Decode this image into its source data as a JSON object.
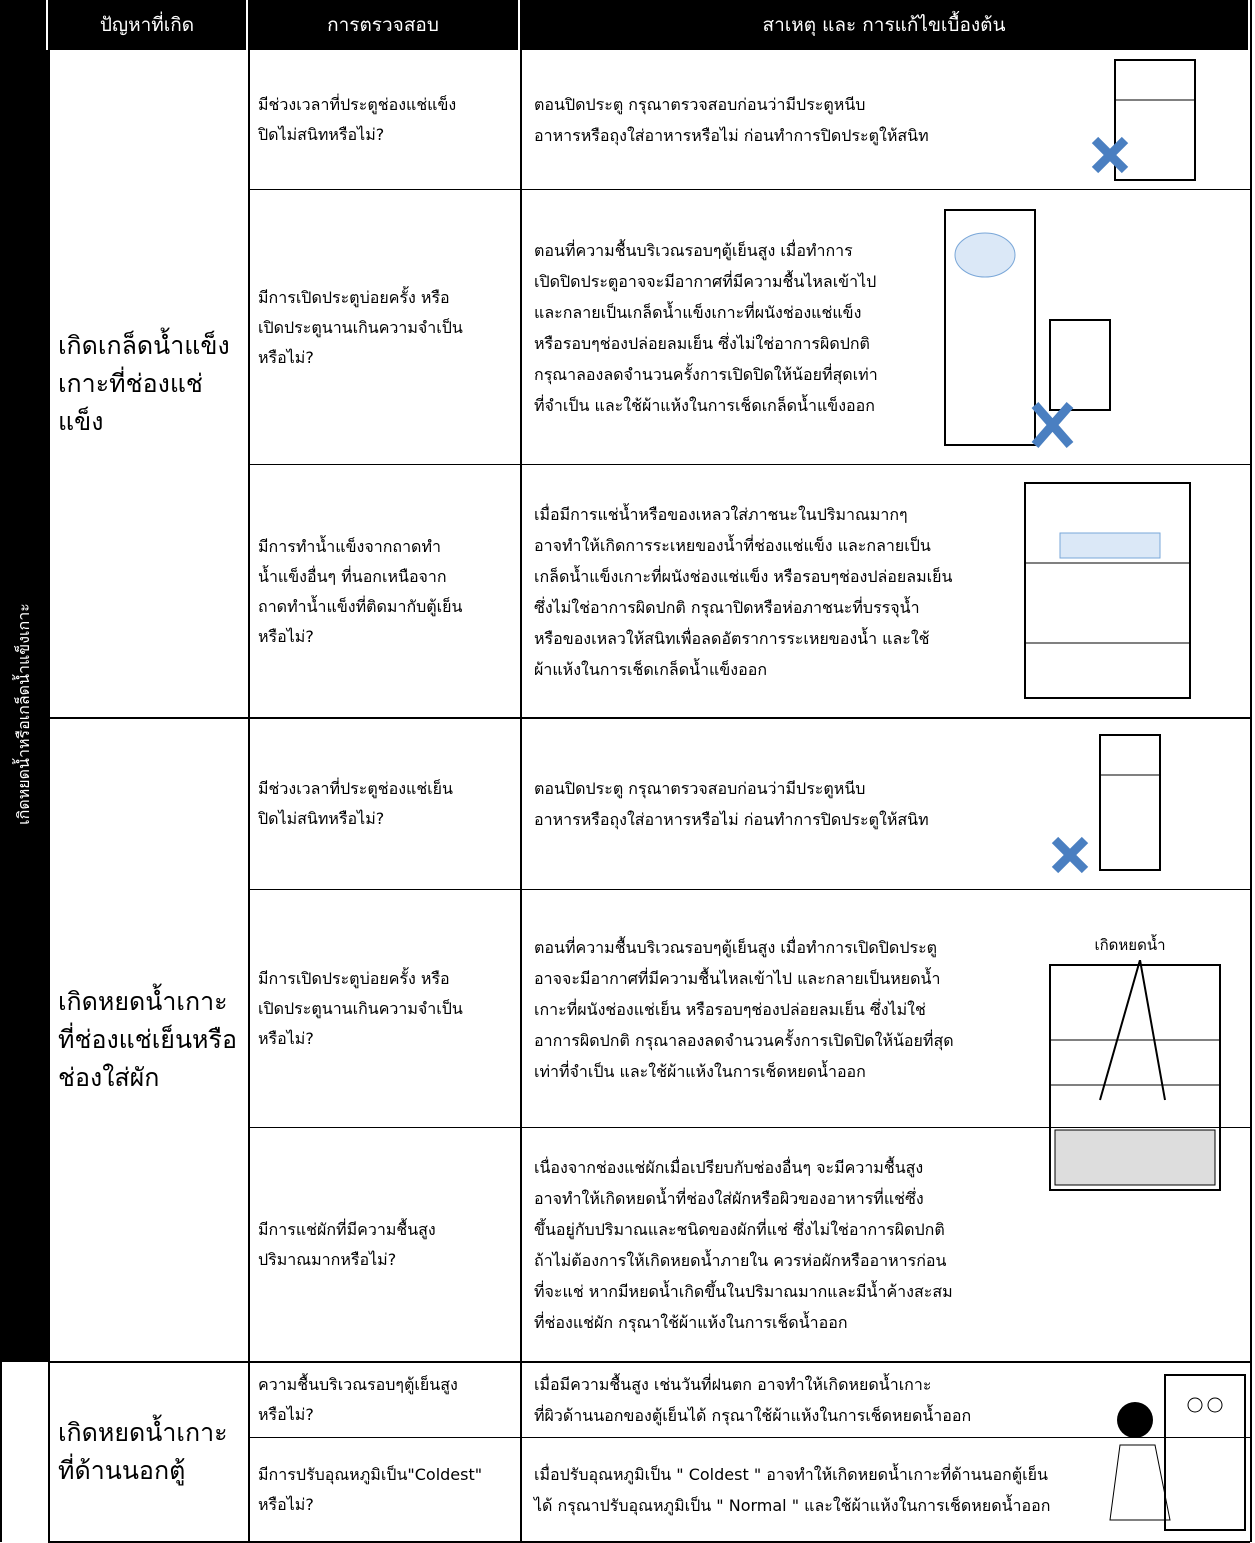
{
  "header": {
    "columns": [
      "ปัญหาที่เกิด",
      "การตรวจสอบ",
      "สาเหตุ และ การแก้ไขเบื้องต้น"
    ]
  },
  "side_label": "เกิดหยดน้ำหรือเกล็ดน้ำแข็งเกาะ",
  "groups": [
    {
      "problem": "เกิดเกล็ดน้ำแข็ง\nเกาะที่ช่องแช่แข็ง",
      "rows": [
        {
          "check": "มีช่วงเวลาที่ประตูช่องแช่แข็ง\nปิดไม่สนิทหรือไม่?",
          "cause": "ตอนปิดประตู กรุณาตรวจสอบก่อนว่ามีประตูหนีบ\nอาหารหรือถุงใส่อาหารหรือไม่ ก่อนทำการปิดประตูให้สนิท"
        },
        {
          "check": "มีการเปิดประตูบ่อยครั้ง หรือ\nเปิดประตูนานเกินความจำเป็น\nหรือไม่?",
          "cause": "ตอนที่ความชื้นบริเวณรอบๆตู้เย็นสูง เมื่อทำการ\nเปิดปิดประตูอาจจะมีอากาศที่มีความชื้นไหลเข้าไป\nและกลายเป็นเกล็ดน้ำแข็งเกาะที่ผนังช่องแช่แข็ง\nหรือรอบๆช่องปล่อยลมเย็น ซึ่งไม่ใช่อาการผิดปกติ\nกรุณาลองลดจำนวนครั้งการเปิดปิดให้น้อยที่สุดเท่า\nที่จำเป็น และใช้ผ้าแห้งในการเช็ดเกล็ดน้ำแข็งออก"
        },
        {
          "check": "มีการทำน้ำแข็งจากถาดทำ\nน้ำแข็งอื่นๆ ที่นอกเหนือจาก\nถาดทำน้ำแข็งที่ติดมากับตู้เย็น\nหรือไม่?",
          "cause": "เมื่อมีการแช่น้ำหรือของเหลวใส่ภาชนะในปริมาณมากๆ\nอาจทำให้เกิดการระเหยของน้ำที่ช่องแช่แข็ง และกลายเป็น\nเกล็ดน้ำแข็งเกาะที่ผนังช่องแช่แข็ง หรือรอบๆช่องปล่อยลมเย็น\nซึ่งไม่ใช่อาการผิดปกติ กรุณาปิดหรือห่อภาชนะที่บรรจุน้ำ\nหรือของเหลวให้สนิทเพื่อลดอัตราการระเหยของน้ำ และใช้\nผ้าแห้งในการเช็ดเกล็ดน้ำแข็งออก"
        }
      ]
    },
    {
      "problem": "เกิดหยดน้ำเกาะ\nที่ช่องแช่เย็นหรือ\nช่องใส่ผัก",
      "rows": [
        {
          "check": "มีช่วงเวลาที่ประตูช่องแช่เย็น\nปิดไม่สนิทหรือไม่?",
          "cause": "ตอนปิดประตู กรุณาตรวจสอบก่อนว่ามีประตูหนีบ\nอาหารหรือถุงใส่อาหารหรือไม่ ก่อนทำการปิดประตูให้สนิท"
        },
        {
          "check": "มีการเปิดประตูบ่อยครั้ง หรือ\nเปิดประตูนานเกินความจำเป็น\nหรือไม่?",
          "cause": "ตอนที่ความชื้นบริเวณรอบๆตู้เย็นสูง เมื่อทำการเปิดปิดประตู\nอาจจะมีอากาศที่มีความชื้นไหลเข้าไป และกลายเป็นหยดน้ำ\nเกาะที่ผนังช่องแช่เย็น หรือรอบๆช่องปล่อยลมเย็น ซึ่งไม่ใช่\nอาการผิดปกติ กรุณาลองลดจำนวนครั้งการเปิดปิดให้น้อยที่สุด\nเท่าที่จำเป็น และใช้ผ้าแห้งในการเช็ดหยดน้ำออก"
        },
        {
          "check": "มีการแช่ผักที่มีความชื้นสูง\nปริมาณมากหรือไม่?",
          "cause": "เนื่องจากช่องแช่ผักเมื่อเปรียบกับช่องอื่นๆ จะมีความชื้นสูง\nอาจทำให้เกิดหยดน้ำที่ช่องใส่ผักหรือผิวของอาหารที่แช่ซึ่ง\nขึ้นอยู่กับปริมาณและชนิดของผักที่แช่ ซึ่งไม่ใช่อาการผิดปกติ\nถ้าไม่ต้องการให้เกิดหยดน้ำภายใน ควรห่อผักหรืออาหารก่อน\nที่จะแช่ หากมีหยดน้ำเกิดขึ้นในปริมาณมากและมีน้ำค้างสะสม\nที่ช่องแช่ผัก กรุณาใช้ผ้าแห้งในการเช็ดน้ำออก"
        }
      ]
    },
    {
      "problem": "เกิดหยดน้ำเกาะ\nที่ด้านนอกตู้",
      "rows": [
        {
          "check": "ความชื้นบริเวณรอบๆตู้เย็นสูง\nหรือไม่?",
          "cause": "เมื่อมีความชื้นสูง เช่นวันที่ฝนตก อาจทำให้เกิดหยดน้ำเกาะ\nที่ผิวด้านนอกของตู้เย็นได้ กรุณาใช้ผ้าแห้งในการเช็ดหยดน้ำออก"
        },
        {
          "check": "มีการปรับอุณหภูมิเป็น\"Coldest\"\nหรือไม่?",
          "cause": "เมื่อปรับอุณหภูมิเป็น \" Coldest \" อาจทำให้เกิดหยดน้ำเกาะที่ด้านนอกตู้เย็น\nได้ กรุณาปรับอุณหภูมิเป็น \" Normal \" และใช้ผ้าแห้งในการเช็ดหยดน้ำออก"
        }
      ]
    }
  ],
  "illustration_label": "เกิดหยดน้ำ"
}
